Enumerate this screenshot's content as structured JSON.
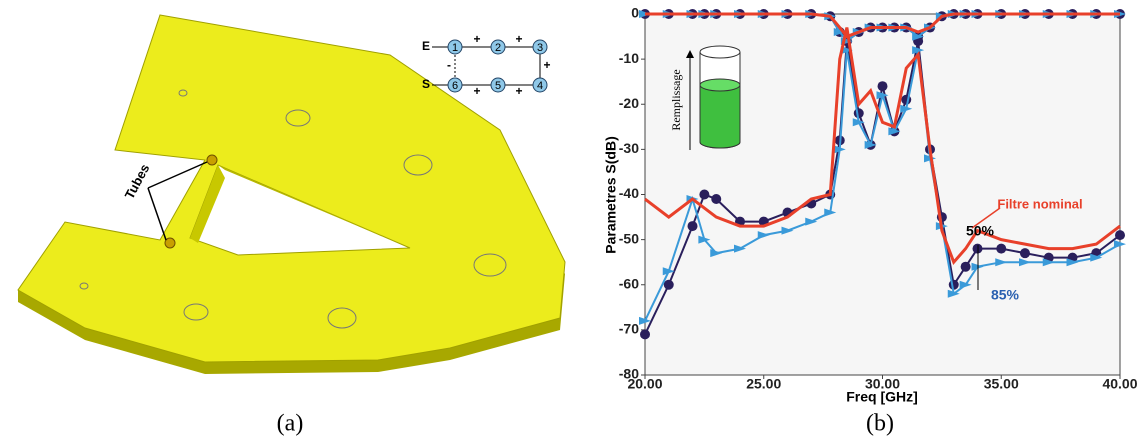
{
  "panel_a": {
    "caption": "(a)",
    "annotation": "Tubes",
    "diagram": {
      "input": "E",
      "output": "S",
      "nodes": [
        "1",
        "2",
        "3",
        "4",
        "5",
        "6"
      ],
      "signs": [
        "+",
        "+",
        "+",
        "+",
        "+",
        "-"
      ]
    }
  },
  "caption_b": "(b)",
  "inset_label": "Remplissage",
  "chart_data": {
    "type": "line",
    "x_label": "Freq [GHz]",
    "y_label": "Parametres S(dB)",
    "x": [
      20,
      21,
      22,
      22.5,
      23,
      24,
      25,
      26,
      27,
      27.8,
      28.2,
      28.5,
      29,
      29.5,
      30,
      30.5,
      31,
      31.5,
      32,
      32.5,
      33,
      33.5,
      34,
      35,
      36,
      37,
      38,
      39,
      40
    ],
    "series": [
      {
        "name": "Filtre nominal",
        "color": "#e8402a",
        "marker": "none",
        "values": [
          -41,
          -45,
          -41,
          -43,
          -45,
          -47,
          -47,
          -45,
          -41,
          -40,
          -10,
          -3,
          -20,
          -17,
          -24,
          -25,
          -12,
          -9,
          -30,
          -48,
          -55,
          -52,
          -48,
          -50,
          -51,
          -52,
          -52,
          -51,
          -47
        ],
        "s11_values": [
          0,
          0,
          0,
          0,
          0,
          0,
          0,
          0,
          0,
          -0.5,
          -3,
          -5,
          -4,
          -3,
          -3,
          -3,
          -3,
          -4,
          -3,
          -0.5,
          0,
          0,
          0,
          0,
          0,
          0,
          0,
          0,
          0
        ]
      },
      {
        "name": "50%",
        "color": "#2a1f5c",
        "marker": "circle",
        "values": [
          -71,
          -60,
          -47,
          -40,
          -41,
          -46,
          -46,
          -44,
          -42,
          -40,
          -28,
          -6,
          -22,
          -29,
          -16,
          -26,
          -19,
          -6,
          -30,
          -45,
          -60,
          -56,
          -52,
          -52,
          -53,
          -54,
          -54,
          -53,
          -49
        ],
        "s11_values": [
          0,
          0,
          0,
          0,
          0,
          0,
          0,
          0,
          0,
          -0.5,
          -4,
          -6,
          -4,
          -3,
          -3,
          -3,
          -3,
          -5,
          -3,
          -0.5,
          0,
          0,
          0,
          0,
          0,
          0,
          0,
          0,
          0
        ]
      },
      {
        "name": "85%",
        "color": "#3a9ad9",
        "marker": "triangle",
        "values": [
          -68,
          -57,
          -41,
          -50,
          -53,
          -52,
          -49,
          -48,
          -46,
          -44,
          -30,
          -8,
          -24,
          -29,
          -18,
          -26,
          -21,
          -8,
          -32,
          -47,
          -62,
          -60,
          -56,
          -55,
          -55,
          -55,
          -55,
          -54,
          -51
        ],
        "s11_values": [
          0,
          0,
          0,
          0,
          0,
          0,
          0,
          0,
          0,
          -0.5,
          -4,
          -6,
          -4,
          -3,
          -3,
          -3,
          -3,
          -5,
          -3,
          -0.5,
          0,
          0,
          0,
          0,
          0,
          0,
          0,
          0,
          0
        ]
      }
    ],
    "xlim": [
      20,
      40
    ],
    "ylim": [
      -80,
      0
    ],
    "xticks": [
      {
        "value": 20,
        "label": "20.00"
      },
      {
        "value": 25,
        "label": "25.00"
      },
      {
        "value": 30,
        "label": "30.00"
      },
      {
        "value": 35,
        "label": "35.00"
      },
      {
        "value": 40,
        "label": "40.00"
      }
    ],
    "yticks": [
      0,
      -10,
      -20,
      -30,
      -40,
      -50,
      -60,
      -70,
      -80
    ],
    "grid": false
  }
}
